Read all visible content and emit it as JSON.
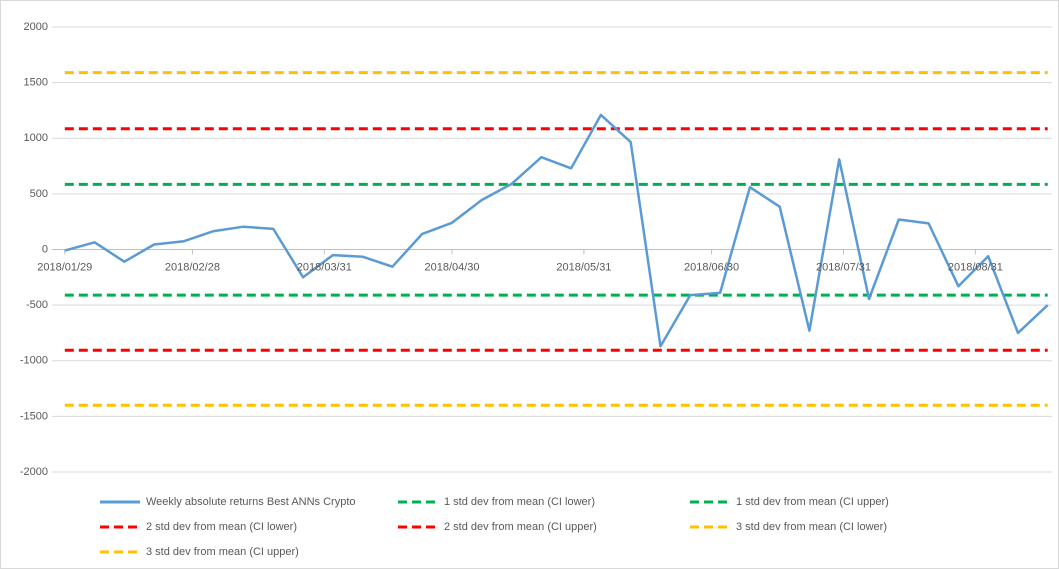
{
  "chart_data": {
    "type": "line",
    "x": [
      "2018/01/29",
      "2018/02/05",
      "2018/02/12",
      "2018/02/19",
      "2018/02/26",
      "2018/03/05",
      "2018/03/12",
      "2018/03/19",
      "2018/03/26",
      "2018/04/02",
      "2018/04/09",
      "2018/04/16",
      "2018/04/23",
      "2018/04/30",
      "2018/05/07",
      "2018/05/14",
      "2018/05/21",
      "2018/05/28",
      "2018/06/04",
      "2018/06/11",
      "2018/06/18",
      "2018/06/25",
      "2018/07/02",
      "2018/07/09",
      "2018/07/16",
      "2018/07/23",
      "2018/07/30",
      "2018/08/06",
      "2018/08/13",
      "2018/08/20",
      "2018/08/27",
      "2018/09/03",
      "2018/09/10",
      "2018/09/17"
    ],
    "xlim": [
      "2018/01/26",
      "2018/09/18"
    ],
    "xticks": [
      "2018/01/29",
      "2018/02/28",
      "2018/03/31",
      "2018/04/30",
      "2018/05/31",
      "2018/06/30",
      "2018/07/31",
      "2018/08/31"
    ],
    "ylim": [
      -2000,
      2000
    ],
    "yticks": [
      -2000,
      -1500,
      -1000,
      -500,
      0,
      500,
      1000,
      1500,
      2000
    ],
    "grid": true,
    "legend": "bottom",
    "series": [
      {
        "name": "Weekly absolute returns Best ANNs Crypto",
        "color": "#5b9bd5",
        "dashed": false,
        "values": [
          -10,
          65,
          -110,
          45,
          75,
          165,
          205,
          185,
          -250,
          -50,
          -65,
          -155,
          140,
          240,
          445,
          590,
          830,
          730,
          1210,
          965,
          -870,
          -410,
          -390,
          560,
          385,
          -730,
          810,
          -445,
          270,
          235,
          -330,
          -60,
          -750,
          -500
        ]
      },
      {
        "name": "1 std dev from mean (CI lower)",
        "color": "#00b050",
        "dashed": true,
        "values": [
          -410,
          -410,
          -410,
          -410,
          -410,
          -410,
          -410,
          -410,
          -410,
          -410,
          -410,
          -410,
          -410,
          -410,
          -410,
          -410,
          -410,
          -410,
          -410,
          -410,
          -410,
          -410,
          -410,
          -410,
          -410,
          -410,
          -410,
          -410,
          -410,
          -410,
          -410,
          -410,
          -410,
          -410
        ]
      },
      {
        "name": "1 std dev from mean (CI upper)",
        "color": "#00b050",
        "dashed": true,
        "values": [
          585,
          585,
          585,
          585,
          585,
          585,
          585,
          585,
          585,
          585,
          585,
          585,
          585,
          585,
          585,
          585,
          585,
          585,
          585,
          585,
          585,
          585,
          585,
          585,
          585,
          585,
          585,
          585,
          585,
          585,
          585,
          585,
          585,
          585
        ]
      },
      {
        "name": "2 std dev from mean (CI lower)",
        "color": "#ff0000",
        "dashed": true,
        "values": [
          -905,
          -905,
          -905,
          -905,
          -905,
          -905,
          -905,
          -905,
          -905,
          -905,
          -905,
          -905,
          -905,
          -905,
          -905,
          -905,
          -905,
          -905,
          -905,
          -905,
          -905,
          -905,
          -905,
          -905,
          -905,
          -905,
          -905,
          -905,
          -905,
          -905,
          -905,
          -905,
          -905,
          -905
        ]
      },
      {
        "name": "2 std dev from mean (CI upper)",
        "color": "#ff0000",
        "dashed": true,
        "values": [
          1085,
          1085,
          1085,
          1085,
          1085,
          1085,
          1085,
          1085,
          1085,
          1085,
          1085,
          1085,
          1085,
          1085,
          1085,
          1085,
          1085,
          1085,
          1085,
          1085,
          1085,
          1085,
          1085,
          1085,
          1085,
          1085,
          1085,
          1085,
          1085,
          1085,
          1085,
          1085,
          1085,
          1085
        ]
      },
      {
        "name": "3 std dev from mean (CI lower)",
        "color": "#ffc000",
        "dashed": true,
        "values": [
          -1400,
          -1400,
          -1400,
          -1400,
          -1400,
          -1400,
          -1400,
          -1400,
          -1400,
          -1400,
          -1400,
          -1400,
          -1400,
          -1400,
          -1400,
          -1400,
          -1400,
          -1400,
          -1400,
          -1400,
          -1400,
          -1400,
          -1400,
          -1400,
          -1400,
          -1400,
          -1400,
          -1400,
          -1400,
          -1400,
          -1400,
          -1400,
          -1400,
          -1400
        ]
      },
      {
        "name": "3 std dev from mean (CI upper)",
        "color": "#ffc000",
        "dashed": true,
        "values": [
          1590,
          1590,
          1590,
          1590,
          1590,
          1590,
          1590,
          1590,
          1590,
          1590,
          1590,
          1590,
          1590,
          1590,
          1590,
          1590,
          1590,
          1590,
          1590,
          1590,
          1590,
          1590,
          1590,
          1590,
          1590,
          1590,
          1590,
          1590,
          1590,
          1590,
          1590,
          1590,
          1590,
          1590
        ]
      }
    ]
  }
}
